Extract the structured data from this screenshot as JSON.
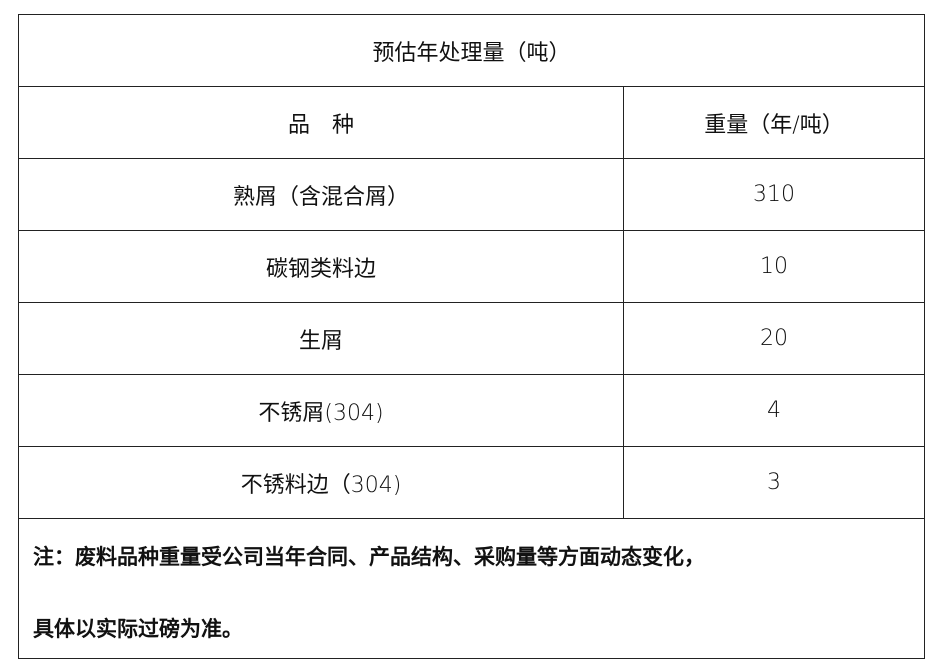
{
  "title": "预估年处理量（吨）",
  "header": {
    "variety": "品　种",
    "weight": "重量（年/吨）"
  },
  "rows": [
    {
      "variety": "熟屑（含混合屑）",
      "weight": "310"
    },
    {
      "variety": "碳钢类料边",
      "weight": "10"
    },
    {
      "variety": "生屑",
      "weight": "20"
    },
    {
      "variety": "不锈屑(304)",
      "weight": "4"
    },
    {
      "variety": "不锈料边（304)",
      "weight": "3"
    }
  ],
  "note": {
    "line1": "注：废料品种重量受公司当年合同、产品结构、采购量等方面动态变化，",
    "line2": "具体以实际过磅为准。"
  }
}
